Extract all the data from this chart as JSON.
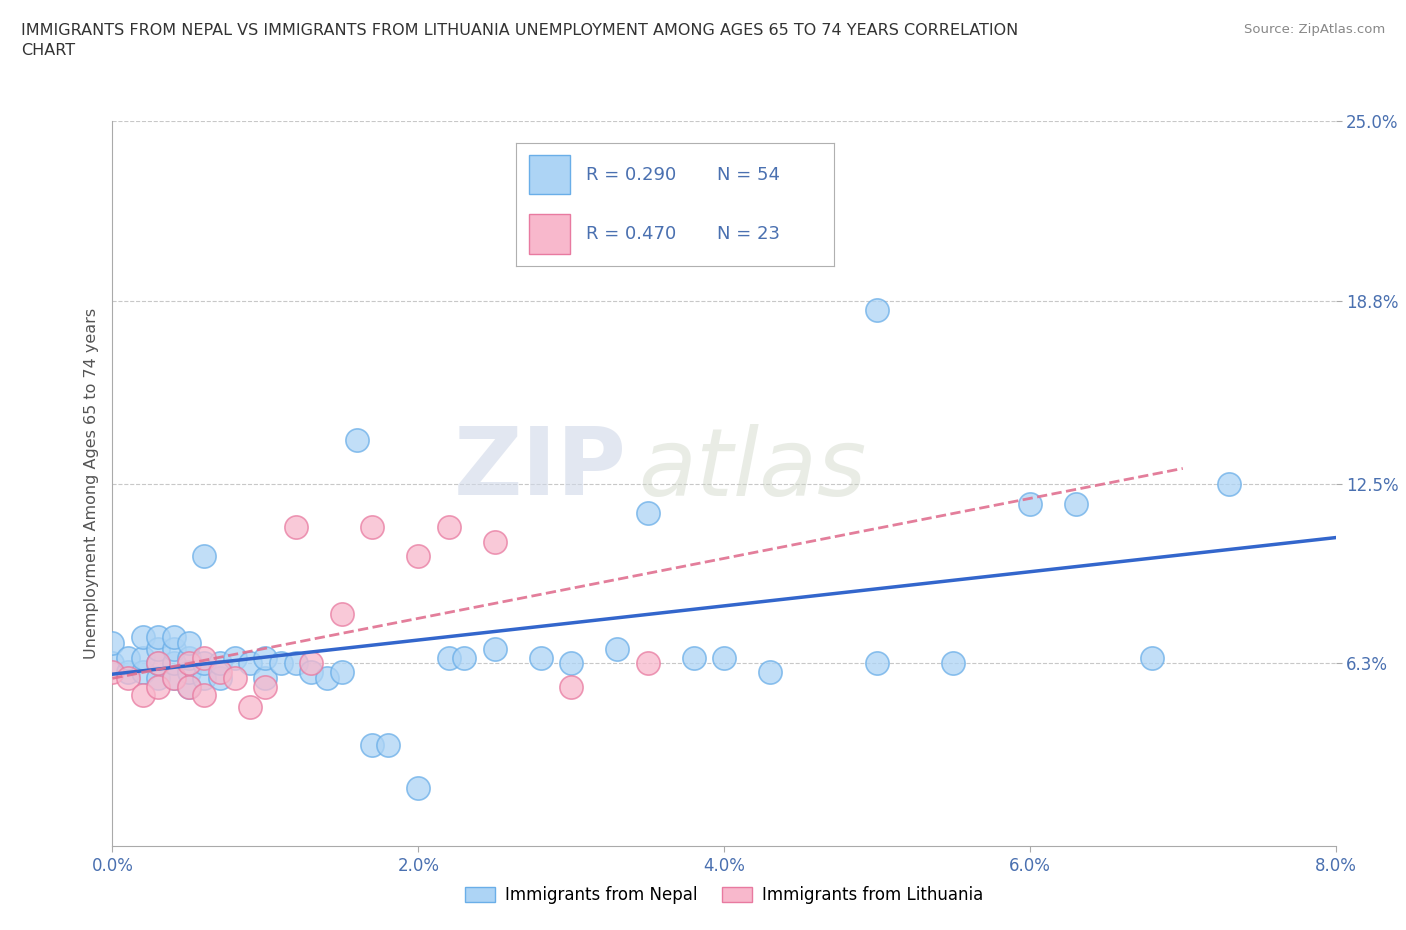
{
  "title": "IMMIGRANTS FROM NEPAL VS IMMIGRANTS FROM LITHUANIA UNEMPLOYMENT AMONG AGES 65 TO 74 YEARS CORRELATION\nCHART",
  "source_text": "Source: ZipAtlas.com",
  "ylabel": "Unemployment Among Ages 65 to 74 years",
  "xlim": [
    0.0,
    0.08
  ],
  "ylim": [
    0.0,
    0.25
  ],
  "xtick_labels": [
    "0.0%",
    "2.0%",
    "4.0%",
    "6.0%",
    "8.0%"
  ],
  "xtick_vals": [
    0.0,
    0.02,
    0.04,
    0.06,
    0.08
  ],
  "ytick_labels": [
    "6.3%",
    "12.5%",
    "18.8%",
    "25.0%"
  ],
  "ytick_vals": [
    0.063,
    0.125,
    0.188,
    0.25
  ],
  "nepal_color": "#add4f5",
  "nepal_edge_color": "#6aaee8",
  "lithuania_color": "#f8b8cc",
  "lithuania_edge_color": "#e87aa0",
  "nepal_line_color": "#3366cc",
  "lithuania_line_color": "#e07090",
  "R_nepal": "0.290",
  "N_nepal": "54",
  "R_lithuania": "0.470",
  "N_lithuania": "23",
  "nepal_scatter_x": [
    0.0,
    0.0,
    0.001,
    0.001,
    0.002,
    0.002,
    0.002,
    0.003,
    0.003,
    0.003,
    0.003,
    0.004,
    0.004,
    0.004,
    0.004,
    0.005,
    0.005,
    0.005,
    0.005,
    0.006,
    0.006,
    0.006,
    0.007,
    0.007,
    0.008,
    0.009,
    0.01,
    0.01,
    0.011,
    0.012,
    0.013,
    0.014,
    0.015,
    0.016,
    0.017,
    0.018,
    0.02,
    0.022,
    0.023,
    0.025,
    0.028,
    0.03,
    0.033,
    0.035,
    0.038,
    0.04,
    0.043,
    0.05,
    0.05,
    0.055,
    0.06,
    0.063,
    0.068,
    0.073
  ],
  "nepal_scatter_y": [
    0.063,
    0.07,
    0.06,
    0.065,
    0.06,
    0.065,
    0.072,
    0.058,
    0.063,
    0.068,
    0.072,
    0.058,
    0.063,
    0.068,
    0.072,
    0.055,
    0.06,
    0.065,
    0.07,
    0.058,
    0.063,
    0.1,
    0.058,
    0.063,
    0.065,
    0.063,
    0.058,
    0.065,
    0.063,
    0.063,
    0.06,
    0.058,
    0.06,
    0.14,
    0.035,
    0.035,
    0.02,
    0.065,
    0.065,
    0.068,
    0.065,
    0.063,
    0.068,
    0.115,
    0.065,
    0.065,
    0.06,
    0.063,
    0.185,
    0.063,
    0.118,
    0.118,
    0.065,
    0.125
  ],
  "lithuania_scatter_x": [
    0.0,
    0.001,
    0.002,
    0.003,
    0.003,
    0.004,
    0.005,
    0.005,
    0.006,
    0.006,
    0.007,
    0.008,
    0.009,
    0.01,
    0.012,
    0.013,
    0.015,
    0.017,
    0.02,
    0.022,
    0.025,
    0.03,
    0.035
  ],
  "lithuania_scatter_y": [
    0.06,
    0.058,
    0.052,
    0.055,
    0.063,
    0.058,
    0.055,
    0.063,
    0.052,
    0.065,
    0.06,
    0.058,
    0.048,
    0.055,
    0.11,
    0.063,
    0.08,
    0.11,
    0.1,
    0.11,
    0.105,
    0.055,
    0.063
  ],
  "watermark_zip": "ZIP",
  "watermark_atlas": "atlas",
  "background_color": "#ffffff",
  "grid_color": "#c8c8c8",
  "tick_color": "#4a70b0",
  "label_color": "#555555"
}
